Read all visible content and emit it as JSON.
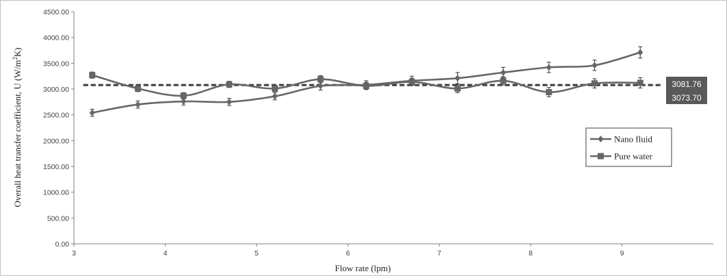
{
  "chart_data": {
    "type": "line",
    "title": "",
    "xlabel": "Flow rate (lpm)",
    "ylabel_prefix": "Overall  heat  transfer  coefficient,  U (W/m",
    "ylabel_sup": "2",
    "ylabel_suffix": "K)",
    "xlim": [
      3,
      10
    ],
    "ylim": [
      0,
      4500
    ],
    "x_ticks": [
      "3",
      "4",
      "5",
      "6",
      "7",
      "8",
      "9"
    ],
    "y_ticks": [
      "0.00",
      "500.00",
      "1000.00",
      "1500.00",
      "2000.00",
      "2500.00",
      "3000.00",
      "3500.00",
      "4000.00",
      "4500.00"
    ],
    "x": [
      3.2,
      3.7,
      4.2,
      4.7,
      5.2,
      5.7,
      6.2,
      6.7,
      7.2,
      7.7,
      8.2,
      8.7,
      9.2
    ],
    "series": [
      {
        "name": "Nano fluid",
        "marker": "diamond",
        "values": [
          2540,
          2700,
          2760,
          2750,
          2860,
          3060,
          3080,
          3160,
          3210,
          3320,
          3420,
          3460,
          3710
        ],
        "error": [
          70,
          70,
          70,
          70,
          70,
          80,
          80,
          90,
          110,
          100,
          100,
          100,
          110
        ]
      },
      {
        "name": "Pure water",
        "marker": "square",
        "values": [
          3270,
          3010,
          2870,
          3090,
          3010,
          3190,
          3060,
          3140,
          3010,
          3160,
          2940,
          3110,
          3120
        ],
        "error": [
          60,
          60,
          60,
          60,
          60,
          70,
          70,
          70,
          80,
          80,
          90,
          90,
          100
        ]
      }
    ],
    "mean_lines": [
      {
        "label": "3081.76",
        "value": 3081.76
      },
      {
        "label": "3073.70",
        "value": 3073.7
      }
    ],
    "legend_position": "right",
    "grid": false,
    "colors": {
      "series": "#666666",
      "mean_line": "#404040",
      "callout_bg": "#595959",
      "axis": "#7f7f7f"
    }
  }
}
